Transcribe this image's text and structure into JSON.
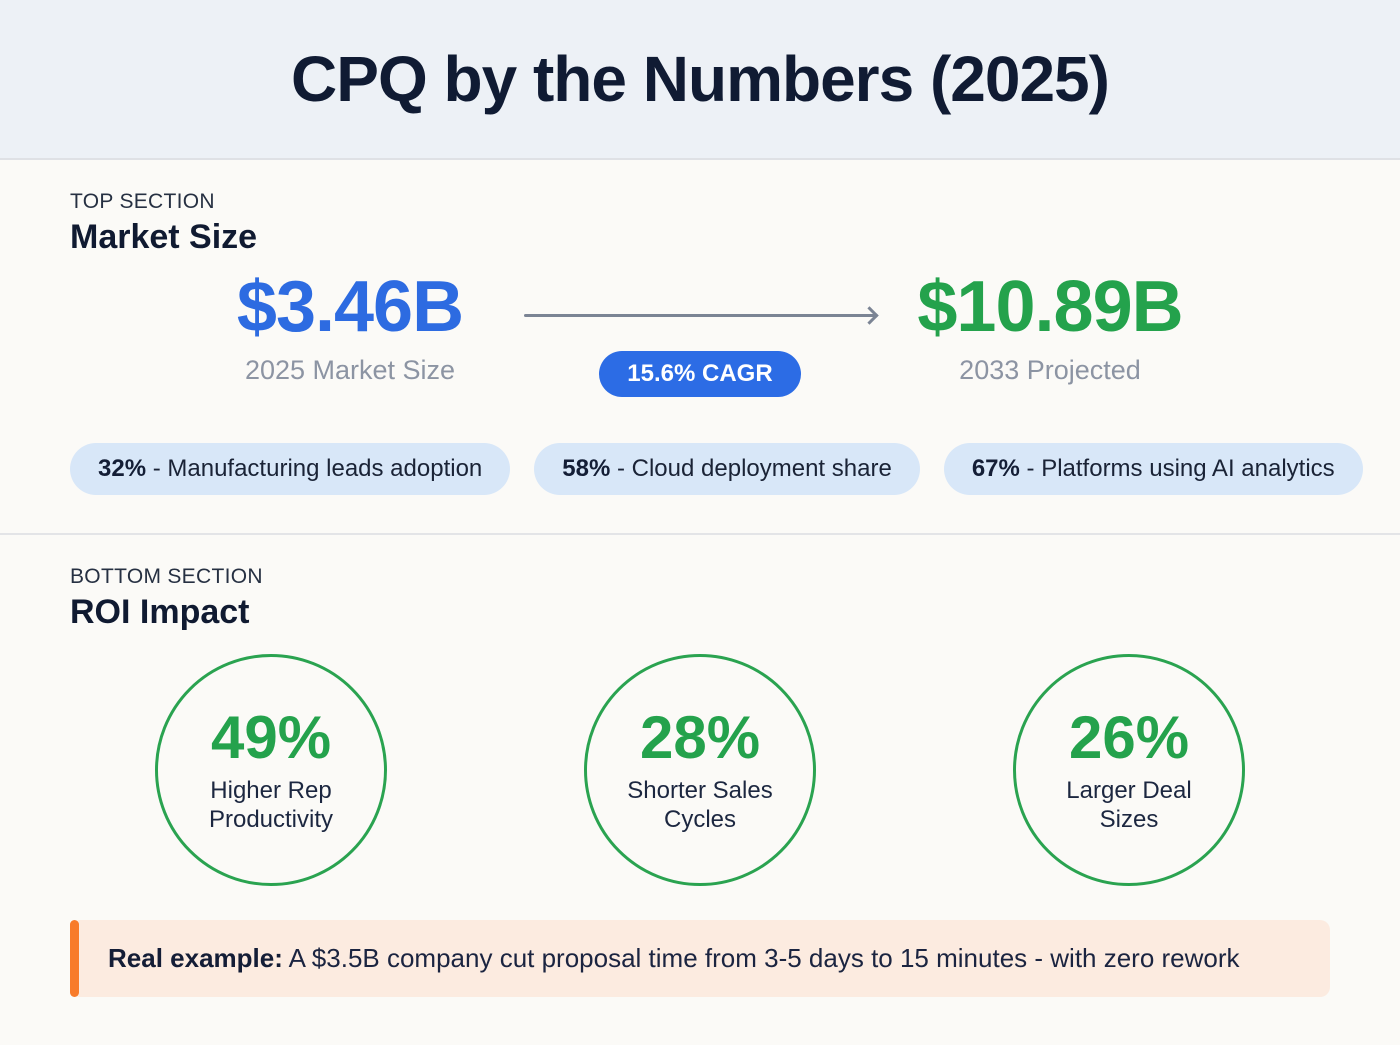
{
  "header": {
    "title": "CPQ by the Numbers (2025)"
  },
  "top": {
    "eyebrow": "TOP SECTION",
    "heading": "Market Size",
    "market": {
      "from_value": "$3.46B",
      "from_label": "2025 Market Size",
      "cagr_badge": "15.6% CAGR",
      "to_value": "$10.89B",
      "to_label": "2033 Projected"
    },
    "stats": [
      {
        "percent": "32%",
        "text": "- Manufacturing leads adoption"
      },
      {
        "percent": "58%",
        "text": "- Cloud deployment share"
      },
      {
        "percent": "67%",
        "text": "- Platforms using AI analytics"
      }
    ]
  },
  "bottom": {
    "eyebrow": "BOTTOM SECTION",
    "heading": "ROI Impact",
    "circles": [
      {
        "value": "49%",
        "label": "Higher Rep Productivity"
      },
      {
        "value": "28%",
        "label": "Shorter Sales Cycles"
      },
      {
        "value": "26%",
        "label": "Larger Deal Sizes"
      }
    ],
    "callout": {
      "lead": "Real example:",
      "text": "A $3.5B company cut proposal time from 3-5 days to 15 minutes - with zero rework"
    }
  },
  "colors": {
    "accent_blue": "#2d6be1",
    "accent_green": "#24a24c",
    "accent_orange": "#f87b2a",
    "pill_bg": "#d8e7f8",
    "callout_bg": "#fcebe0",
    "header_bg": "#edf1f6"
  },
  "chart_data": [
    {
      "type": "table",
      "title": "Market Size",
      "rows": [
        [
          "2025 Market Size",
          "$3.46B"
        ],
        [
          "2033 Projected",
          "$10.89B"
        ],
        [
          "CAGR",
          "15.6%"
        ],
        [
          "Manufacturing leads adoption",
          "32%"
        ],
        [
          "Cloud deployment share",
          "58%"
        ],
        [
          "Platforms using AI analytics",
          "67%"
        ]
      ]
    },
    {
      "type": "table",
      "title": "ROI Impact",
      "rows": [
        [
          "Higher Rep Productivity",
          "49%"
        ],
        [
          "Shorter Sales Cycles",
          "28%"
        ],
        [
          "Larger Deal Sizes",
          "26%"
        ]
      ]
    }
  ]
}
